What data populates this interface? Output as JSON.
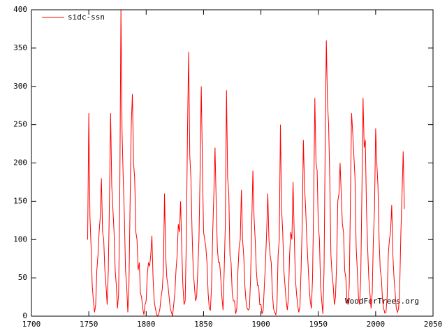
{
  "chart_data": {
    "type": "line",
    "annotation": "WoodForTrees.org",
    "x": [
      1749,
      1750,
      1751,
      1752,
      1753,
      1754,
      1755,
      1756,
      1757,
      1758,
      1759,
      1760,
      1761,
      1762,
      1763,
      1764,
      1765,
      1766,
      1767,
      1768,
      1769,
      1770,
      1771,
      1772,
      1773,
      1774,
      1775,
      1776,
      1777,
      1778,
      1779,
      1780,
      1781,
      1782,
      1783,
      1784,
      1785,
      1786,
      1787,
      1788,
      1789,
      1790,
      1791,
      1792,
      1793,
      1794,
      1795,
      1796,
      1797,
      1798,
      1799,
      1800,
      1801,
      1802,
      1803,
      1804,
      1805,
      1806,
      1807,
      1808,
      1809,
      1810,
      1811,
      1812,
      1813,
      1814,
      1815,
      1816,
      1817,
      1818,
      1819,
      1820,
      1821,
      1822,
      1823,
      1824,
      1825,
      1826,
      1827,
      1828,
      1829,
      1830,
      1831,
      1832,
      1833,
      1834,
      1835,
      1836,
      1837,
      1838,
      1839,
      1840,
      1841,
      1842,
      1843,
      1844,
      1845,
      1846,
      1847,
      1848,
      1849,
      1850,
      1851,
      1852,
      1853,
      1854,
      1855,
      1856,
      1857,
      1858,
      1859,
      1860,
      1861,
      1862,
      1863,
      1864,
      1865,
      1866,
      1867,
      1868,
      1869,
      1870,
      1871,
      1872,
      1873,
      1874,
      1875,
      1876,
      1877,
      1878,
      1879,
      1880,
      1881,
      1882,
      1883,
      1884,
      1885,
      1886,
      1887,
      1888,
      1889,
      1890,
      1891,
      1892,
      1893,
      1894,
      1895,
      1896,
      1897,
      1898,
      1899,
      1900,
      1901,
      1902,
      1903,
      1904,
      1905,
      1906,
      1907,
      1908,
      1909,
      1910,
      1911,
      1912,
      1913,
      1914,
      1915,
      1916,
      1917,
      1918,
      1919,
      1920,
      1921,
      1922,
      1923,
      1924,
      1925,
      1926,
      1927,
      1928,
      1929,
      1930,
      1931,
      1932,
      1933,
      1934,
      1935,
      1936,
      1937,
      1938,
      1939,
      1940,
      1941,
      1942,
      1943,
      1944,
      1945,
      1946,
      1947,
      1948,
      1949,
      1950,
      1951,
      1952,
      1953,
      1954,
      1955,
      1956,
      1957,
      1958,
      1959,
      1960,
      1961,
      1962,
      1963,
      1964,
      1965,
      1966,
      1967,
      1968,
      1969,
      1970,
      1971,
      1972,
      1973,
      1974,
      1975,
      1976,
      1977,
      1978,
      1979,
      1980,
      1981,
      1982,
      1983,
      1984,
      1985,
      1986,
      1987,
      1988,
      1989,
      1990,
      1991,
      1992,
      1993,
      1994,
      1995,
      1996,
      1997,
      1998,
      1999,
      2000,
      2001,
      2002,
      2003,
      2004,
      2005,
      2006,
      2007,
      2008,
      2009,
      2010,
      2011,
      2012,
      2013,
      2014,
      2015,
      2016,
      2017,
      2018,
      2019,
      2020,
      2021,
      2022,
      2023,
      2024,
      2025
    ],
    "series": [
      {
        "name": "sidc-ssn",
        "color": "#ff0000",
        "values": [
          100,
          265,
          130,
          90,
          40,
          20,
          5,
          15,
          60,
          80,
          110,
          130,
          180,
          110,
          100,
          60,
          40,
          15,
          60,
          150,
          265,
          170,
          140,
          110,
          60,
          40,
          10,
          30,
          160,
          400,
          240,
          180,
          130,
          60,
          40,
          5,
          40,
          150,
          250,
          290,
          200,
          180,
          110,
          100,
          60,
          70,
          30,
          25,
          10,
          2,
          15,
          20,
          55,
          70,
          65,
          80,
          105,
          50,
          20,
          10,
          3,
          0,
          3,
          10,
          25,
          35,
          60,
          160,
          80,
          50,
          40,
          25,
          10,
          5,
          0,
          15,
          30,
          60,
          80,
          120,
          110,
          150,
          90,
          40,
          15,
          20,
          100,
          240,
          345,
          210,
          180,
          110,
          60,
          40,
          20,
          25,
          60,
          100,
          190,
          300,
          200,
          110,
          100,
          90,
          70,
          30,
          10,
          8,
          40,
          110,
          160,
          220,
          150,
          90,
          70,
          70,
          50,
          25,
          8,
          60,
          120,
          295,
          180,
          160,
          80,
          70,
          30,
          20,
          20,
          3,
          10,
          60,
          90,
          100,
          165,
          100,
          80,
          40,
          20,
          10,
          8,
          10,
          50,
          120,
          190,
          130,
          100,
          60,
          40,
          40,
          15,
          15,
          3,
          8,
          40,
          70,
          110,
          160,
          100,
          80,
          70,
          30,
          10,
          5,
          2,
          15,
          80,
          100,
          250,
          140,
          110,
          60,
          40,
          20,
          8,
          25,
          80,
          110,
          100,
          175,
          110,
          50,
          30,
          15,
          5,
          12,
          60,
          120,
          230,
          170,
          140,
          100,
          70,
          40,
          20,
          10,
          50,
          150,
          285,
          200,
          190,
          120,
          100,
          40,
          20,
          3,
          60,
          220,
          360,
          280,
          250,
          180,
          80,
          55,
          40,
          15,
          25,
          70,
          150,
          160,
          200,
          160,
          120,
          110,
          60,
          50,
          20,
          15,
          40,
          150,
          265,
          240,
          210,
          180,
          90,
          60,
          25,
          15,
          50,
          160,
          285,
          220,
          230,
          140,
          90,
          50,
          30,
          10,
          30,
          100,
          140,
          245,
          200,
          170,
          100,
          60,
          50,
          20,
          10,
          4,
          5,
          25,
          80,
          100,
          110,
          145,
          80,
          50,
          30,
          10,
          5,
          10,
          40,
          110,
          160,
          215,
          140
        ]
      }
    ],
    "xlim": [
      1700,
      2050
    ],
    "xticks": [
      1700,
      1750,
      1800,
      1850,
      1900,
      1950,
      2000,
      2050
    ],
    "ylim": [
      0,
      400
    ],
    "yticks": [
      0,
      50,
      100,
      150,
      200,
      250,
      300,
      350,
      400
    ],
    "grid": false,
    "legend": "top-left"
  }
}
